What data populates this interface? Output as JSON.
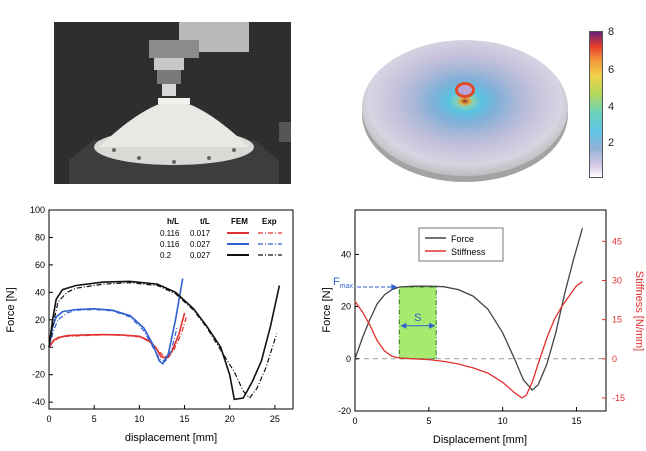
{
  "colorbar": {
    "ticks": [
      "8",
      "6",
      "4",
      "2"
    ],
    "colors": {
      "top": "#6a2079",
      "high": "#e53d2b",
      "mid": "#f0d24a",
      "low": "#5ec4e6",
      "base": "#ffffff"
    }
  },
  "chart_data": [
    {
      "type": "line",
      "xlabel": "displacement [mm]",
      "ylabel": "Force [N]",
      "xlim": [
        0,
        27
      ],
      "ylim": [
        -45,
        100
      ],
      "xticks": [
        "0",
        "5",
        "10",
        "15",
        "20",
        "25"
      ],
      "yticks": [
        "100",
        "80",
        "60",
        "40",
        "20",
        "0",
        "-20",
        "-40"
      ],
      "legend": {
        "location": "top-right",
        "headers": [
          "h/L",
          "t/L",
          "FEM",
          "Exp"
        ],
        "rows": [
          {
            "h": "0.116",
            "t": "0.017",
            "color": "#e03030"
          },
          {
            "h": "0.116",
            "t": "0.027",
            "color": "#3060d0"
          },
          {
            "h": "0.2",
            "t": "0.027",
            "color": "#111111"
          }
        ]
      },
      "series": [
        {
          "name": "FEM 0.116 / 0.017",
          "style": "solid",
          "color": "#e03030",
          "x": [
            0,
            0.5,
            1,
            2,
            4,
            6,
            8,
            10,
            11,
            11.8,
            12.4,
            13,
            13.6,
            14.4,
            15
          ],
          "y": [
            0,
            5,
            7,
            8.5,
            9,
            9.2,
            9,
            8,
            5,
            0,
            -7,
            -8,
            -3,
            10,
            25
          ]
        },
        {
          "name": "Exp 0.116 / 0.017",
          "style": "dashdot",
          "color": "#e03030",
          "x": [
            0,
            0.5,
            1,
            2,
            4,
            6,
            8,
            10,
            11,
            11.8,
            12.6,
            13.2,
            13.8,
            14.6,
            15.2
          ],
          "y": [
            0,
            4,
            6.5,
            8,
            8.5,
            9,
            8.8,
            7.5,
            4.5,
            0,
            -6,
            -7.5,
            -2,
            9,
            22
          ]
        },
        {
          "name": "FEM 0.116 / 0.027",
          "style": "solid",
          "color": "#3060d0",
          "x": [
            0,
            0.4,
            0.8,
            1.5,
            3,
            5,
            7,
            9,
            10.5,
            11.5,
            12.2,
            12.6,
            13.2,
            14,
            14.8
          ],
          "y": [
            0,
            15,
            22,
            26,
            27.5,
            28,
            27,
            23,
            14,
            2,
            -10,
            -12,
            -5,
            20,
            50
          ]
        },
        {
          "name": "Exp 0.116 / 0.027",
          "style": "dashdot",
          "color": "#3060d0",
          "x": [
            0,
            0.5,
            1,
            2,
            3,
            5,
            7,
            9,
            10.5,
            11.5,
            12.3,
            12.9,
            13.5,
            14.2
          ],
          "y": [
            0,
            12,
            20,
            25,
            27,
            27.5,
            26.5,
            22,
            12,
            0,
            -9,
            -10,
            -3,
            15
          ]
        },
        {
          "name": "FEM 0.2 / 0.027",
          "style": "solid",
          "color": "#111111",
          "x": [
            0,
            0.4,
            0.8,
            1.5,
            3,
            6,
            9,
            12,
            14,
            16,
            17.5,
            19,
            20,
            20.5,
            21.5,
            22.5,
            23.5,
            24.5,
            25.5
          ],
          "y": [
            0,
            20,
            35,
            42,
            45,
            47.5,
            48,
            46,
            40,
            28,
            15,
            0,
            -20,
            -38,
            -37,
            -25,
            -10,
            15,
            45
          ]
        },
        {
          "name": "Exp 0.2 / 0.027",
          "style": "dashdot",
          "color": "#111111",
          "x": [
            0,
            0.5,
            1,
            2,
            3,
            6,
            9,
            12,
            14,
            16,
            17.5,
            19,
            20.5,
            21.5,
            22.2,
            23,
            24,
            25.2
          ],
          "y": [
            0,
            18,
            33,
            40,
            43,
            46,
            47,
            45,
            39,
            27,
            14,
            -2,
            -18,
            -32,
            -37,
            -30,
            -15,
            10
          ]
        }
      ]
    },
    {
      "type": "line",
      "xlabel": "Displacement [mm]",
      "ylabel": "Force [N]",
      "y2label": "Stiffness [N/mm]",
      "xlim": [
        0,
        17
      ],
      "ylim": [
        -20,
        57
      ],
      "y2lim": [
        -20,
        57
      ],
      "xticks": [
        "0",
        "5",
        "10",
        "15"
      ],
      "yticks": [
        "40",
        "20",
        "0",
        "-20"
      ],
      "y2ticks": [
        "45",
        "30",
        "15",
        "0",
        "-15"
      ],
      "legend": {
        "location": "top-left",
        "entries": [
          "Force",
          "Stiffness"
        ]
      },
      "annotations": {
        "fmax": {
          "base": "F",
          "sub": "max"
        },
        "s_label": "S",
        "band_start": 3.0,
        "band_end": 5.5,
        "fmax_value": 27.5
      },
      "series": [
        {
          "name": "Force",
          "color": "#444444",
          "x": [
            0,
            0.5,
            1,
            1.5,
            2,
            2.5,
            3,
            4,
            5,
            6,
            7,
            8,
            9,
            10,
            10.8,
            11.4,
            12,
            12.4,
            13,
            13.6,
            14.2,
            14.8,
            15.4
          ],
          "y": [
            0,
            8,
            15,
            21,
            24.5,
            26.5,
            27.5,
            27.8,
            27.8,
            27.6,
            26.5,
            24,
            19,
            10,
            0,
            -8,
            -12,
            -10,
            -2,
            10,
            25,
            38,
            50
          ]
        },
        {
          "name": "Stiffness",
          "color": "#e03030",
          "x": [
            0,
            0.5,
            1,
            1.5,
            2,
            2.5,
            3,
            4,
            5,
            6,
            7,
            8,
            9,
            10,
            10.8,
            11.3,
            11.6,
            12,
            12.4,
            13,
            13.5,
            14,
            14.5,
            15,
            15.4
          ],
          "y": [
            22,
            18,
            13,
            7,
            3,
            1,
            0.3,
            0,
            -0.3,
            -1,
            -2,
            -3.5,
            -5.5,
            -9,
            -13,
            -15,
            -14,
            -9,
            -2,
            8,
            15,
            20,
            24,
            28,
            29.5
          ]
        }
      ]
    }
  ]
}
